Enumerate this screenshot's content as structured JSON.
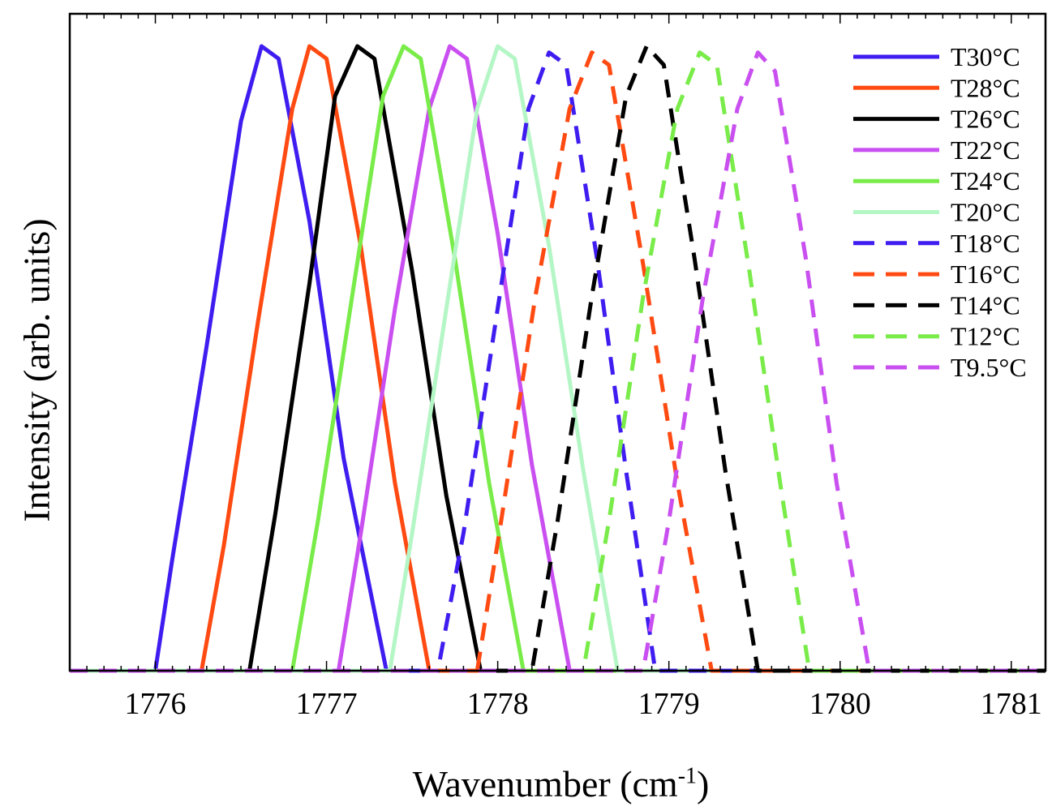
{
  "chart_data": {
    "type": "line",
    "title": "",
    "xlabel": "Wavenumber (cm-1)",
    "xlabel_base": "Wavenumber (cm",
    "xlabel_sup": "-1",
    "xlabel_end": ")",
    "ylabel": "Intensity (arb. units)",
    "xlim": [
      1775.5,
      1781.2
    ],
    "ylim": [
      0,
      1.0
    ],
    "xticks": [
      1776,
      1777,
      1778,
      1779,
      1780,
      1781
    ],
    "grid": false,
    "legend_position": "top-right",
    "series": [
      {
        "name": "T30°C",
        "color": "#3f1df0",
        "style": "solid",
        "x": [
          1775.5,
          1775.9,
          1776.0,
          1776.1,
          1776.3,
          1776.5,
          1776.62,
          1776.72,
          1776.9,
          1777.1,
          1777.35,
          1777.6,
          1781.2
        ],
        "y": [
          0,
          0,
          0,
          0.18,
          0.52,
          0.88,
          1.0,
          0.98,
          0.72,
          0.34,
          0,
          0,
          0
        ]
      },
      {
        "name": "T28°C",
        "color": "#ff4a12",
        "style": "solid",
        "x": [
          1775.5,
          1776.0,
          1776.27,
          1776.4,
          1776.6,
          1776.8,
          1776.9,
          1777.0,
          1777.2,
          1777.4,
          1777.6,
          1777.9,
          1781.2
        ],
        "y": [
          0,
          0,
          0,
          0.2,
          0.56,
          0.9,
          1.0,
          0.98,
          0.68,
          0.3,
          0,
          0,
          0
        ]
      },
      {
        "name": "T26°C",
        "color": "#000000",
        "style": "solid",
        "x": [
          1775.5,
          1776.2,
          1776.55,
          1776.7,
          1776.9,
          1777.05,
          1777.18,
          1777.28,
          1777.5,
          1777.7,
          1777.9,
          1778.2,
          1781.2
        ],
        "y": [
          0,
          0,
          0,
          0.25,
          0.62,
          0.92,
          1.0,
          0.98,
          0.64,
          0.28,
          0,
          0,
          0
        ]
      },
      {
        "name": "T22°C",
        "color": "#c94ff0",
        "style": "solid",
        "x": [
          1775.5,
          1776.7,
          1777.07,
          1777.2,
          1777.4,
          1777.6,
          1777.72,
          1777.82,
          1778.0,
          1778.2,
          1778.42,
          1778.7,
          1781.2
        ],
        "y": [
          0,
          0,
          0,
          0.22,
          0.58,
          0.9,
          1.0,
          0.98,
          0.7,
          0.33,
          0,
          0,
          0
        ]
      },
      {
        "name": "T24°C",
        "color": "#79ec49",
        "style": "solid",
        "x": [
          1775.5,
          1776.5,
          1776.8,
          1776.95,
          1777.15,
          1777.33,
          1777.45,
          1777.55,
          1777.75,
          1777.95,
          1778.15,
          1778.4,
          1781.2
        ],
        "y": [
          0,
          0,
          0,
          0.24,
          0.6,
          0.92,
          1.0,
          0.98,
          0.66,
          0.3,
          0,
          0,
          0
        ]
      },
      {
        "name": "T20°C",
        "color": "#b5f6c6",
        "style": "solid",
        "x": [
          1775.5,
          1777.0,
          1777.37,
          1777.5,
          1777.7,
          1777.88,
          1778.0,
          1778.1,
          1778.3,
          1778.5,
          1778.7,
          1779.0,
          1781.2
        ],
        "y": [
          0,
          0,
          0,
          0.22,
          0.58,
          0.9,
          1.0,
          0.98,
          0.68,
          0.32,
          0,
          0,
          0
        ]
      },
      {
        "name": "T18°C",
        "color": "#3f1df0",
        "style": "dashed",
        "x": [
          1775.5,
          1777.3,
          1777.65,
          1777.8,
          1778.0,
          1778.18,
          1778.3,
          1778.4,
          1778.58,
          1778.75,
          1778.92,
          1779.2,
          1781.2
        ],
        "y": [
          0,
          0,
          0,
          0.22,
          0.58,
          0.9,
          0.99,
          0.97,
          0.66,
          0.32,
          0,
          0,
          0
        ]
      },
      {
        "name": "T16°C",
        "color": "#ff4a12",
        "style": "dashed",
        "x": [
          1775.5,
          1777.6,
          1777.88,
          1778.02,
          1778.22,
          1778.42,
          1778.55,
          1778.65,
          1778.85,
          1779.05,
          1779.25,
          1779.5,
          1781.2
        ],
        "y": [
          0,
          0,
          0,
          0.24,
          0.6,
          0.9,
          0.99,
          0.97,
          0.65,
          0.3,
          0,
          0,
          0
        ]
      },
      {
        "name": "T14°C",
        "color": "#000000",
        "style": "dashed",
        "x": [
          1775.5,
          1777.9,
          1778.2,
          1778.35,
          1778.55,
          1778.75,
          1778.87,
          1778.97,
          1779.15,
          1779.33,
          1779.52,
          1779.8,
          1781.2
        ],
        "y": [
          0,
          0,
          0,
          0.24,
          0.6,
          0.92,
          1.0,
          0.97,
          0.66,
          0.32,
          0,
          0,
          0
        ]
      },
      {
        "name": "T12°C",
        "color": "#79ec49",
        "style": "dashed",
        "x": [
          1775.5,
          1778.2,
          1778.5,
          1778.65,
          1778.85,
          1779.05,
          1779.18,
          1779.28,
          1779.47,
          1779.65,
          1779.82,
          1780.1,
          1781.2
        ],
        "y": [
          0,
          0,
          0,
          0.24,
          0.6,
          0.9,
          0.99,
          0.97,
          0.64,
          0.3,
          0,
          0,
          0
        ]
      },
      {
        "name": "T9.5°C",
        "color": "#c94ff0",
        "style": "dashed",
        "x": [
          1775.5,
          1778.5,
          1778.85,
          1779.0,
          1779.2,
          1779.4,
          1779.52,
          1779.62,
          1779.8,
          1779.98,
          1780.17,
          1780.45,
          1781.2
        ],
        "y": [
          0,
          0,
          0,
          0.24,
          0.6,
          0.9,
          0.99,
          0.96,
          0.66,
          0.3,
          0,
          0,
          0
        ]
      }
    ]
  }
}
